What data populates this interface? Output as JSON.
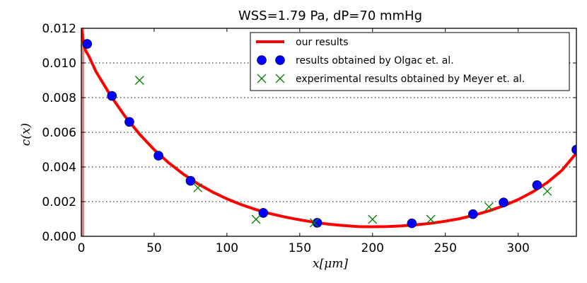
{
  "chart_data": {
    "type": "scatter",
    "title": "WSS=1.79 Pa, dP=70 mmHg",
    "xlabel": "x[μm]",
    "ylabel": "c(x)",
    "xlim": [
      0,
      340
    ],
    "ylim": [
      0,
      0.012
    ],
    "x_ticks": [
      "0",
      "50",
      "100",
      "150",
      "200",
      "250",
      "300"
    ],
    "x_tick_values": [
      0,
      50,
      100,
      150,
      200,
      250,
      300
    ],
    "y_ticks": [
      "0.000",
      "0.002",
      "0.004",
      "0.006",
      "0.008",
      "0.010",
      "0.012"
    ],
    "y_tick_values": [
      0,
      0.002,
      0.004,
      0.006,
      0.008,
      0.01,
      0.012
    ],
    "grid": "horizontal dotted",
    "legend_position": "top-right",
    "series": [
      {
        "name": "our results",
        "kind": "line",
        "color": "#ff0000",
        "x": [
          0,
          1,
          2,
          3,
          5,
          10,
          20,
          30,
          40,
          50,
          60,
          70,
          80,
          90,
          100,
          110,
          120,
          130,
          140,
          150,
          160,
          170,
          180,
          190,
          200,
          210,
          220,
          230,
          240,
          250,
          260,
          270,
          280,
          290,
          300,
          310,
          320,
          330,
          340
        ],
        "y": [
          0.012,
          0.0114,
          0.011,
          0.0107,
          0.01042,
          0.00951,
          0.00813,
          0.00692,
          0.00589,
          0.005,
          0.00424,
          0.00359,
          0.00303,
          0.00256,
          0.00216,
          0.00182,
          0.00154,
          0.0013,
          0.00111,
          0.00095,
          0.00081,
          0.0007,
          0.00062,
          0.00056,
          0.00055,
          0.00056,
          0.0006,
          0.00066,
          0.00075,
          0.00087,
          0.00102,
          0.00122,
          0.00147,
          0.00176,
          0.00212,
          0.00256,
          0.0031,
          0.0038,
          0.0048
        ]
      },
      {
        "name": "results obtained by Olgac et. al.",
        "kind": "marker-circle",
        "color": "#0000ff",
        "x": [
          4,
          21,
          33,
          53,
          75,
          125,
          162,
          227,
          269,
          290,
          313,
          340
        ],
        "y": [
          0.0111,
          0.0081,
          0.0066,
          0.00465,
          0.0032,
          0.00135,
          0.00078,
          0.00075,
          0.00128,
          0.00195,
          0.00295,
          0.005
        ]
      },
      {
        "name": "experimental results obtained by Meyer et. al.",
        "kind": "marker-x",
        "color": "#008000",
        "x": [
          40,
          80,
          120,
          160,
          200,
          240,
          280,
          320
        ],
        "y": [
          0.009,
          0.0028,
          0.00098,
          0.00078,
          0.00098,
          0.00098,
          0.0017,
          0.0026
        ]
      }
    ],
    "annotations": [
      {
        "type": "vertical-band",
        "x_from": 0,
        "x_to": 2,
        "color": "#d28c8c"
      }
    ]
  }
}
